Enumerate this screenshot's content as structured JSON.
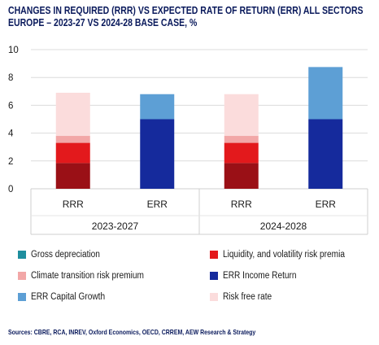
{
  "title_line1": "CHANGES IN REQUIRED (RRR) VS EXPECTED RATE OF RETURN (ERR) ALL SECTORS",
  "title_line2": "EUROPE – 2023-27 VS 2024-28 BASE CASE, %",
  "source": "Sources: CBRE, RCA, INREV, Oxford Economics, OECD, CRREM, AEW Research & Strategy",
  "chart_data": {
    "type": "bar",
    "stacked": true,
    "title": "CHANGES IN REQUIRED (RRR) VS EXPECTED RATE OF RETURN (ERR) ALL SECTORS EUROPE – 2023-27 VS 2024-28 BASE CASE, %",
    "ylim": [
      0,
      10
    ],
    "yticks": [
      "0",
      "2",
      "4",
      "6",
      "8",
      "10"
    ],
    "grid": true,
    "legend_position": "bottom",
    "groups": [
      {
        "label": "2023-2027",
        "categories": [
          "RRR",
          "ERR"
        ]
      },
      {
        "label": "2024-2028",
        "categories": [
          "RRR",
          "ERR"
        ]
      }
    ],
    "categories": [
      "RRR",
      "ERR",
      "RRR",
      "ERR"
    ],
    "series": [
      {
        "name": "Gross depreciation",
        "color": "#1e8e9e",
        "values": [
          1.85,
          0,
          1.85,
          0
        ]
      },
      {
        "name": "Liquidity, and volatility risk premia",
        "color": "#e3191c",
        "values": [
          1.45,
          0,
          1.45,
          0
        ]
      },
      {
        "name": "Climate transition risk premium",
        "color": "#f2a7a7",
        "values": [
          0.5,
          0,
          0.5,
          0
        ]
      },
      {
        "name": "ERR Income Return",
        "color": "#152a9c",
        "values": [
          0,
          5.0,
          0,
          5.0
        ]
      },
      {
        "name": "ERR Capital Growth",
        "color": "#5d9fd5",
        "values": [
          0,
          1.8,
          0,
          3.75
        ]
      },
      {
        "name": "Risk free rate",
        "color": "#fbdcdc",
        "values": [
          3.1,
          0,
          3.0,
          0
        ]
      }
    ],
    "bar_segment_colors": {
      "Gross depreciation": "#9a1016"
    },
    "stack_order": [
      "Gross depreciation",
      "Liquidity, and volatility risk premia",
      "Climate transition risk premium",
      "ERR Income Return",
      "ERR Capital Growth",
      "Risk free rate"
    ]
  },
  "legend": [
    {
      "label": "Gross depreciation",
      "color": "#1e8e9e"
    },
    {
      "label": "Liquidity, and volatility risk premia",
      "color": "#e3191c"
    },
    {
      "label": "Climate transition risk premium",
      "color": "#f2a7a7"
    },
    {
      "label": "ERR Income Return",
      "color": "#152a9c"
    },
    {
      "label": "ERR Capital Growth",
      "color": "#5d9fd5"
    },
    {
      "label": "Risk free rate",
      "color": "#fbdcdc"
    }
  ]
}
